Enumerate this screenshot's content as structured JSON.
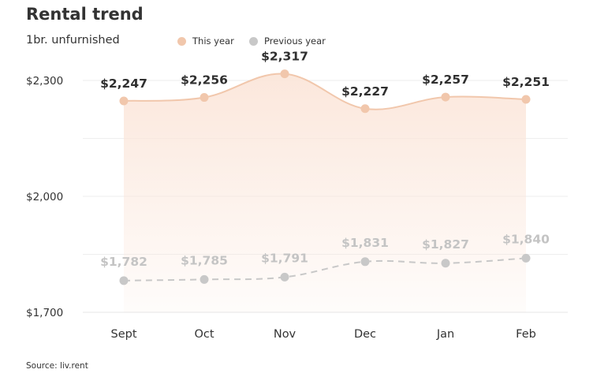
{
  "title": "Rental trend",
  "subtitle": "1br. unfurnished",
  "source": "Source: liv.rent",
  "colors": {
    "this_year": "#f1c7ac",
    "this_year_fill": "#fbe6da",
    "previous_year": "#c8c8c8",
    "grid": "#eeeeee"
  },
  "chart_data": {
    "type": "line",
    "categories": [
      "Sept",
      "Oct",
      "Nov",
      "Dec",
      "Jan",
      "Feb"
    ],
    "series": [
      {
        "name": "This year",
        "values": [
          2247,
          2256,
          2317,
          2227,
          2257,
          2251
        ],
        "labels": [
          "$2,247",
          "$2,256",
          "$2,317",
          "$2,227",
          "$2,257",
          "$2,251"
        ],
        "style": "solid-area"
      },
      {
        "name": "Previous year",
        "values": [
          1782,
          1785,
          1791,
          1831,
          1827,
          1840
        ],
        "labels": [
          "$1,782",
          "$1,785",
          "$1,791",
          "$1,831",
          "$1,827",
          "$1,840"
        ],
        "style": "dashed"
      }
    ],
    "yticks": [
      1700,
      2000,
      2300
    ],
    "ytick_labels": [
      "$1,700",
      "$2,000",
      "$2,300"
    ],
    "ylim": [
      1700,
      2300
    ],
    "grid": true,
    "legend_position": "top"
  }
}
